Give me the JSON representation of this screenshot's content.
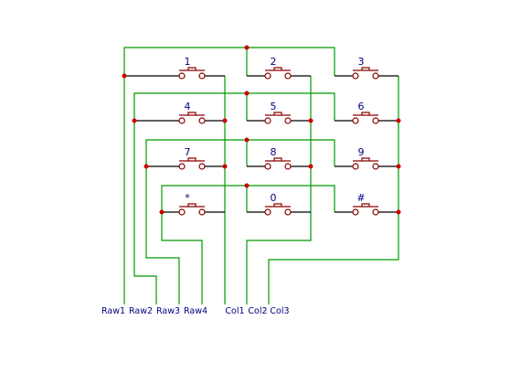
{
  "keys": [
    [
      "1",
      "2",
      "3"
    ],
    [
      "4",
      "5",
      "6"
    ],
    [
      "7",
      "8",
      "9"
    ],
    [
      "*",
      "0",
      "#"
    ]
  ],
  "net_labels": [
    "Raw1",
    "Raw2",
    "Raw3",
    "Raw4",
    "Col1",
    "Col2",
    "Col3"
  ],
  "colors": {
    "wire": "#009900",
    "switch": "#8b0000",
    "junction": "#cc0000",
    "label": "#000080"
  }
}
